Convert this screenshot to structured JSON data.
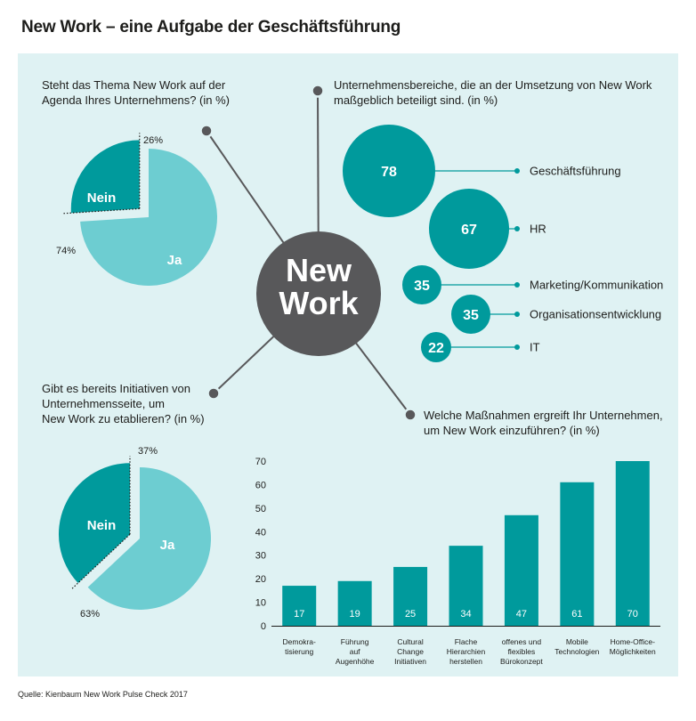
{
  "title": "New Work – eine Aufgabe der Geschäftsführung",
  "center": {
    "line1": "New",
    "line2": "Work"
  },
  "source": "Quelle: Kienbaum New Work Pulse Check 2017",
  "colors": {
    "panel": "#dff2f3",
    "teal_dark": "#009a9c",
    "teal_light": "#6dcdd1",
    "center": "#58585a",
    "text": "#1d1d1b"
  },
  "chart_data": [
    {
      "type": "pie",
      "question": [
        "Steht das Thema New Work auf der",
        "Agenda Ihres Unternehmens? (in %)"
      ],
      "slices": [
        {
          "label": "Nein",
          "value": 26,
          "value_label": "26%"
        },
        {
          "label": "Ja",
          "value": 74,
          "value_label": "74%"
        }
      ]
    },
    {
      "type": "pie",
      "question": [
        "Gibt es bereits Initiativen von",
        "Unternehmensseite, um",
        "New Work zu etablieren? (in %)"
      ],
      "slices": [
        {
          "label": "Nein",
          "value": 37,
          "value_label": "37%"
        },
        {
          "label": "Ja",
          "value": 63,
          "value_label": "63%"
        }
      ]
    },
    {
      "type": "bubble",
      "question": [
        "Unternehmensbereiche, die an der Umsetzung von New Work",
        "maßgeblich beteiligt sind. (in %)"
      ],
      "items": [
        {
          "label": "Geschäftsführung",
          "value": 78
        },
        {
          "label": "HR",
          "value": 67
        },
        {
          "label": "Marketing/Kommunikation",
          "value": 35
        },
        {
          "label": "Organisationsentwicklung",
          "value": 35
        },
        {
          "label": "IT",
          "value": 22
        }
      ]
    },
    {
      "type": "bar",
      "question": [
        "Welche Maßnahmen ergreift Ihr Unternehmen,",
        "um New Work einzuführen? (in %)"
      ],
      "categories": [
        [
          "Demokra-",
          "tisierung"
        ],
        [
          "Führung",
          "auf",
          "Augenhöhe"
        ],
        [
          "Cultural",
          "Change",
          "Initiativen"
        ],
        [
          "Flache",
          "Hierarchien",
          "herstellen"
        ],
        [
          "offenes und",
          "flexibles",
          "Bürokonzept"
        ],
        [
          "Mobile",
          "Technologien"
        ],
        [
          "Home-Office-",
          "Möglichkeiten"
        ]
      ],
      "values": [
        17,
        19,
        25,
        34,
        47,
        61,
        70
      ],
      "ylim": [
        0,
        70
      ],
      "yticks": [
        0,
        10,
        20,
        30,
        40,
        50,
        60,
        70
      ],
      "grid": false
    }
  ]
}
